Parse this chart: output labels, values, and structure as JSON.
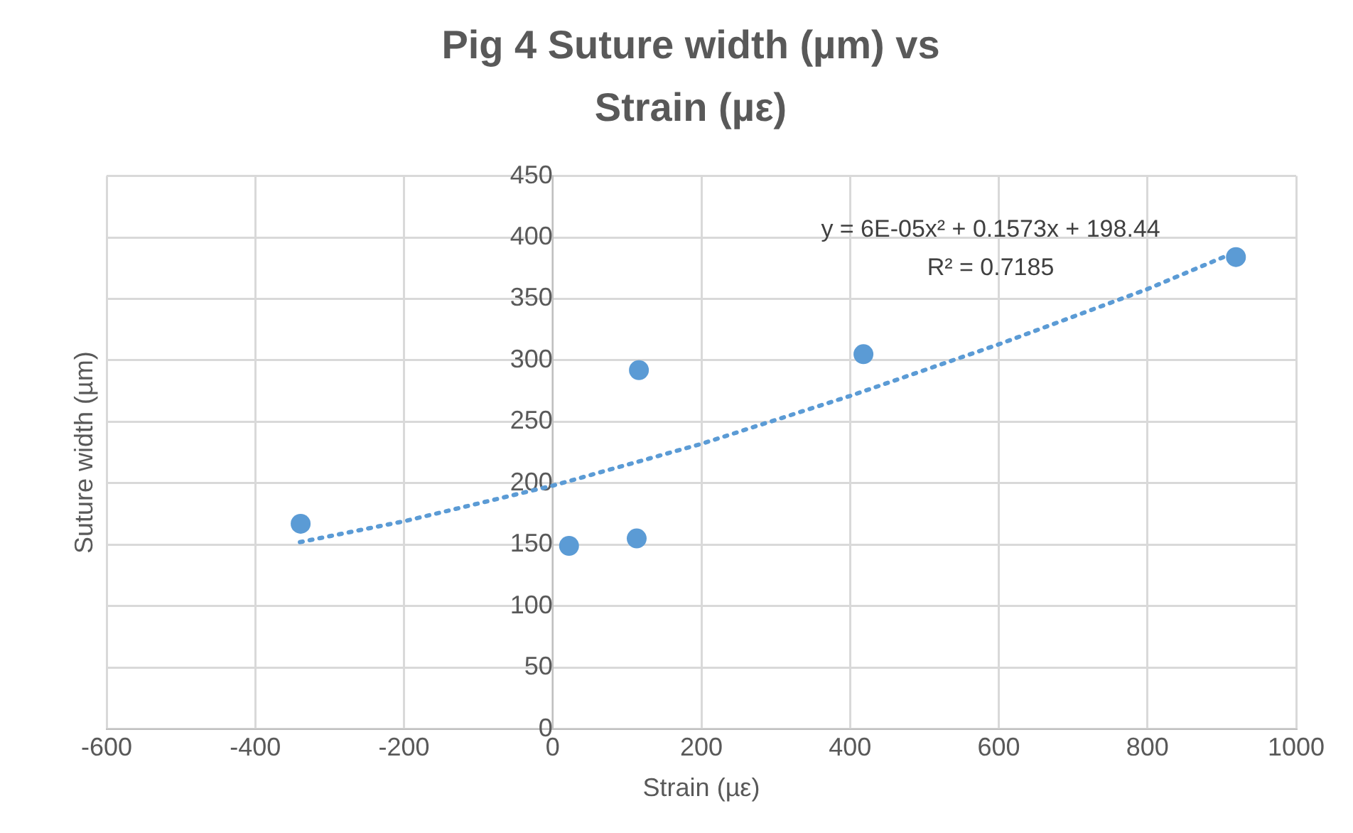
{
  "chart_data": {
    "type": "scatter",
    "title": "Pig 4 Suture width (µm) vs Strain (µε)",
    "xlabel": "Strain (µε)",
    "ylabel": "Suture width (µm)",
    "x": [
      -339,
      22,
      113,
      116,
      418,
      919
    ],
    "series": [
      {
        "color": "#5b9bd5",
        "values": [
          167,
          149,
          155,
          292,
          305,
          384
        ],
        "marker": "circle"
      },
      {
        "type": "line",
        "color": "#5b9bd5",
        "x": [
          -340,
          -200,
          0,
          200,
          400,
          600,
          800,
          918
        ],
        "values": [
          152,
          169,
          198,
          232,
          271,
          313,
          358,
          388
        ],
        "line_style": "dotted",
        "marker": "none"
      }
    ],
    "xlim": [
      -600,
      1000
    ],
    "xticks": [
      -600,
      -400,
      -200,
      0,
      200,
      400,
      600,
      800,
      1000
    ],
    "ylim": [
      0,
      450
    ],
    "yticks": [
      0,
      50,
      100,
      150,
      200,
      250,
      300,
      350,
      400,
      450
    ],
    "grid": true,
    "legend": false,
    "annotations": [
      "y = 6E-05x² + 0.1573x + 198.44",
      "R² = 0.7185"
    ]
  }
}
